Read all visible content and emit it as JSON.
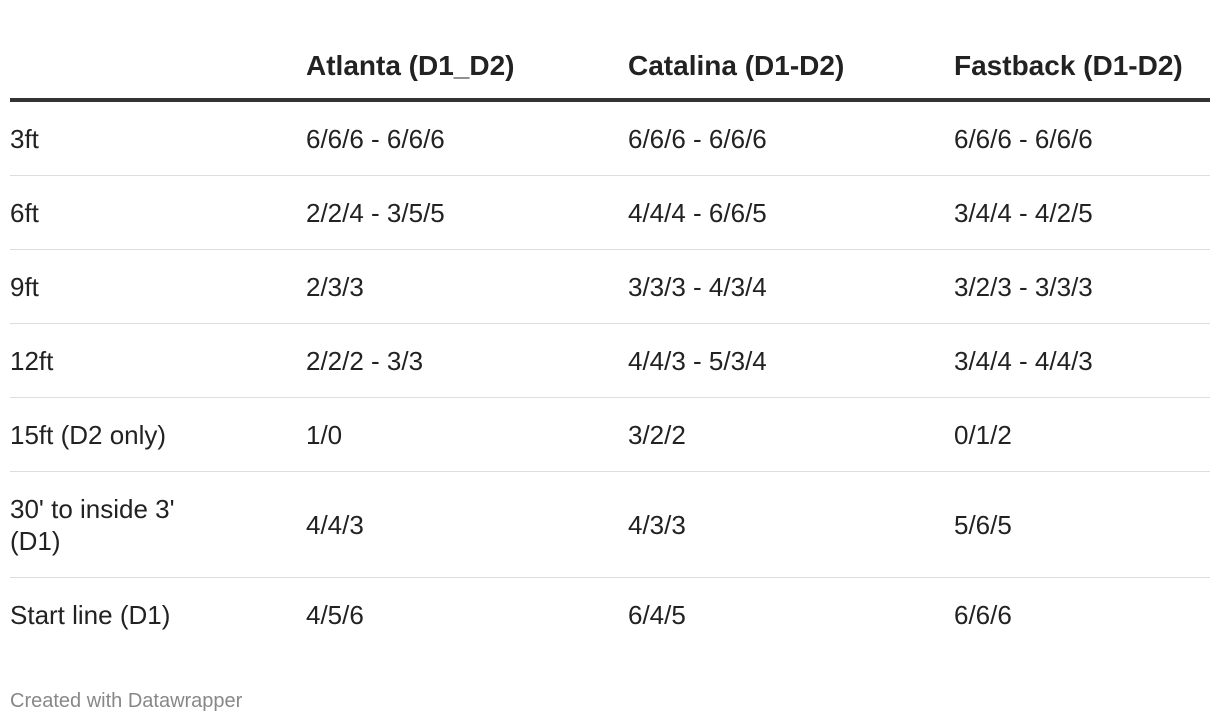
{
  "chart_data": {
    "type": "table",
    "columns": [
      "",
      "Atlanta (D1_D2)",
      "Catalina (D1-D2)",
      "Fastback (D1-D2)"
    ],
    "rows": [
      [
        "3ft",
        "6/6/6 - 6/6/6",
        "6/6/6 - 6/6/6",
        "6/6/6 - 6/6/6"
      ],
      [
        "6ft",
        "2/2/4 - 3/5/5",
        "4/4/4 - 6/6/5",
        "3/4/4 - 4/2/5"
      ],
      [
        "9ft",
        "2/3/3",
        "3/3/3 - 4/3/4",
        "3/2/3 - 3/3/3"
      ],
      [
        "12ft",
        "2/2/2 - 3/3",
        "4/4/3 - 5/3/4",
        "3/4/4 - 4/4/3"
      ],
      [
        "15ft (D2 only)",
        "1/0",
        "3/2/2",
        "0/1/2"
      ],
      [
        "30' to inside 3' (D1)",
        "4/4/3",
        "4/3/3",
        "5/6/5"
      ],
      [
        "Start line (D1)",
        "4/5/6",
        "6/4/5",
        "6/6/6"
      ]
    ]
  },
  "footer": {
    "credit": "Created with Datawrapper"
  },
  "colors": {
    "text": "#222222",
    "header_rule": "#333333",
    "row_rule": "#dddddd",
    "credit": "#888888"
  }
}
